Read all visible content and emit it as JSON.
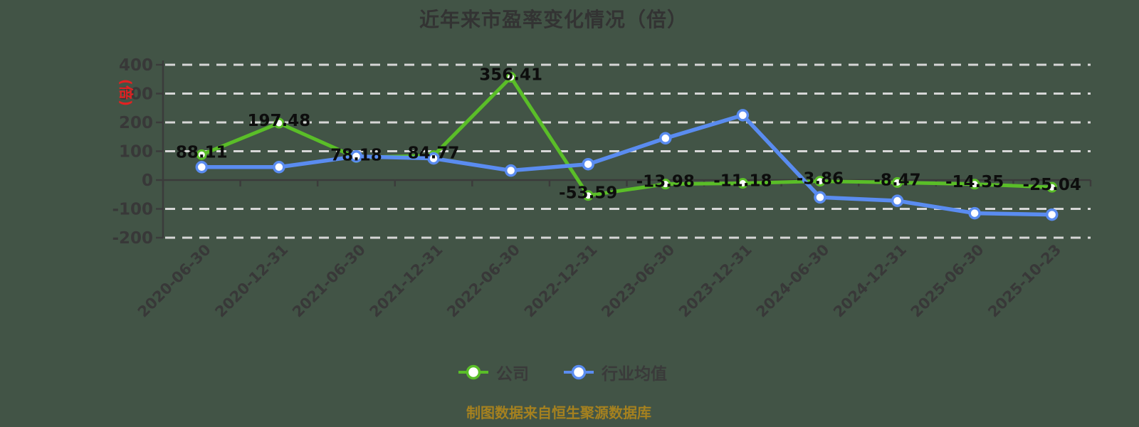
{
  "title": "近年来市盈率变化情况（倍）",
  "y_axis": {
    "unit": "(倍)",
    "unit_color": "#e02222",
    "ticks": [
      400,
      300,
      200,
      100,
      0,
      -100,
      -200
    ]
  },
  "footer": {
    "text": "制图数据来自恒生聚源数据库",
    "color": "#a5811f"
  },
  "legend": {
    "items": [
      {
        "label": "公司",
        "color": "#5abe28"
      },
      {
        "label": "行业均值",
        "color": "#5a8cf0"
      }
    ]
  },
  "colors": {
    "background": "#425446",
    "grid": "#d6d6d6",
    "axis": "#3b3b3b",
    "text": "#383838",
    "data_label": "#0d0d0d"
  },
  "chart_data": {
    "type": "line",
    "title": "近年来市盈率变化情况（倍）",
    "categories": [
      "2020-06-30",
      "2020-12-31",
      "2021-06-30",
      "2021-12-31",
      "2022-06-30",
      "2022-12-31",
      "2023-06-30",
      "2023-12-31",
      "2024-06-30",
      "2024-12-31",
      "2025-06-30",
      "2025-10-23"
    ],
    "series": [
      {
        "name": "公司",
        "color": "#5abe28",
        "values": [
          88.11,
          197.48,
          78.18,
          84.77,
          356.41,
          -53.59,
          -13.98,
          -11.18,
          -3.86,
          -8.47,
          -14.35,
          -25.04
        ],
        "data_labels": true
      },
      {
        "name": "行业均值",
        "color": "#5a8cf0",
        "values": [
          45,
          45,
          82,
          75,
          33,
          55,
          145,
          225,
          -60,
          -72,
          -115,
          -120
        ],
        "data_labels": false
      }
    ],
    "ylim": [
      -200,
      400
    ],
    "y_ticks": [
      400,
      300,
      200,
      100,
      0,
      -100,
      -200
    ],
    "grid": "horizontal dashed",
    "legend_position": "bottom"
  }
}
